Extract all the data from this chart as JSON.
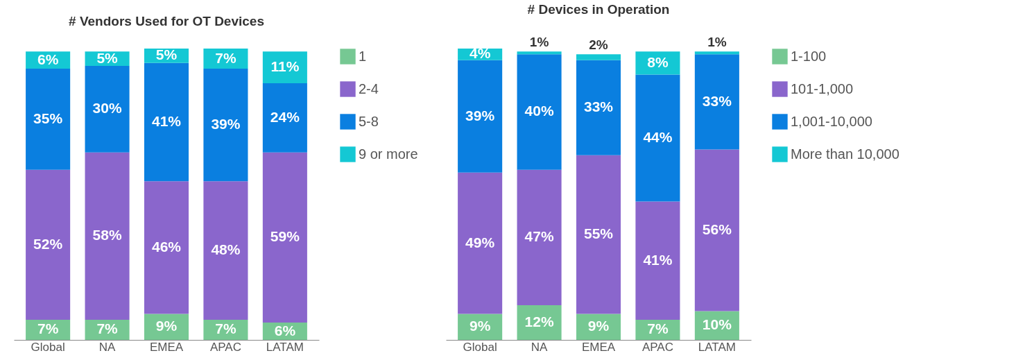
{
  "chart_data": [
    {
      "type": "bar",
      "stacked": true,
      "title": "# Vendors Used for OT Devices",
      "categories": [
        "Global",
        "NA",
        "EMEA",
        "APAC",
        "LATAM"
      ],
      "legend": "right",
      "grid": false,
      "tick_labels": "x",
      "series": [
        {
          "name": "1",
          "color": "#76c893",
          "values": [
            7,
            7,
            9,
            7,
            6
          ],
          "value_labels": [
            "7%",
            "7%",
            "9%",
            "7%",
            "6%"
          ]
        },
        {
          "name": "2-4",
          "color": "#8a66cc",
          "values": [
            52,
            58,
            46,
            48,
            59
          ],
          "value_labels": [
            "52%",
            "58%",
            "46%",
            "48%",
            "59%"
          ]
        },
        {
          "name": "5-8",
          "color": "#0a7fe0",
          "values": [
            35,
            30,
            41,
            39,
            24
          ],
          "value_labels": [
            "35%",
            "30%",
            "41%",
            "39%",
            "24%"
          ]
        },
        {
          "name": "9 or more",
          "color": "#14c8d4",
          "values": [
            6,
            5,
            5,
            7,
            11
          ],
          "value_labels": [
            "6%",
            "5%",
            "5%",
            "7%",
            "11%"
          ]
        }
      ]
    },
    {
      "type": "bar",
      "stacked": true,
      "title": "# Devices in Operation",
      "categories": [
        "Global",
        "NA",
        "EMEA",
        "APAC",
        "LATAM"
      ],
      "legend": "right",
      "grid": false,
      "tick_labels": "x",
      "series": [
        {
          "name": "1-100",
          "color": "#76c893",
          "values": [
            9,
            12,
            9,
            7,
            10
          ],
          "value_labels": [
            "9%",
            "12%",
            "9%",
            "7%",
            "10%"
          ]
        },
        {
          "name": "101-1,000",
          "color": "#8a66cc",
          "values": [
            49,
            47,
            55,
            41,
            56
          ],
          "value_labels": [
            "49%",
            "47%",
            "55%",
            "41%",
            "56%"
          ]
        },
        {
          "name": "1,001-10,000",
          "color": "#0a7fe0",
          "values": [
            39,
            40,
            33,
            44,
            33
          ],
          "value_labels": [
            "39%",
            "40%",
            "33%",
            "44%",
            "33%"
          ]
        },
        {
          "name": "More than 10,000",
          "color": "#14c8d4",
          "values": [
            4,
            1,
            2,
            8,
            1
          ],
          "value_labels": [
            "4%",
            "1%",
            "2%",
            "8%",
            "1%"
          ]
        }
      ]
    }
  ]
}
